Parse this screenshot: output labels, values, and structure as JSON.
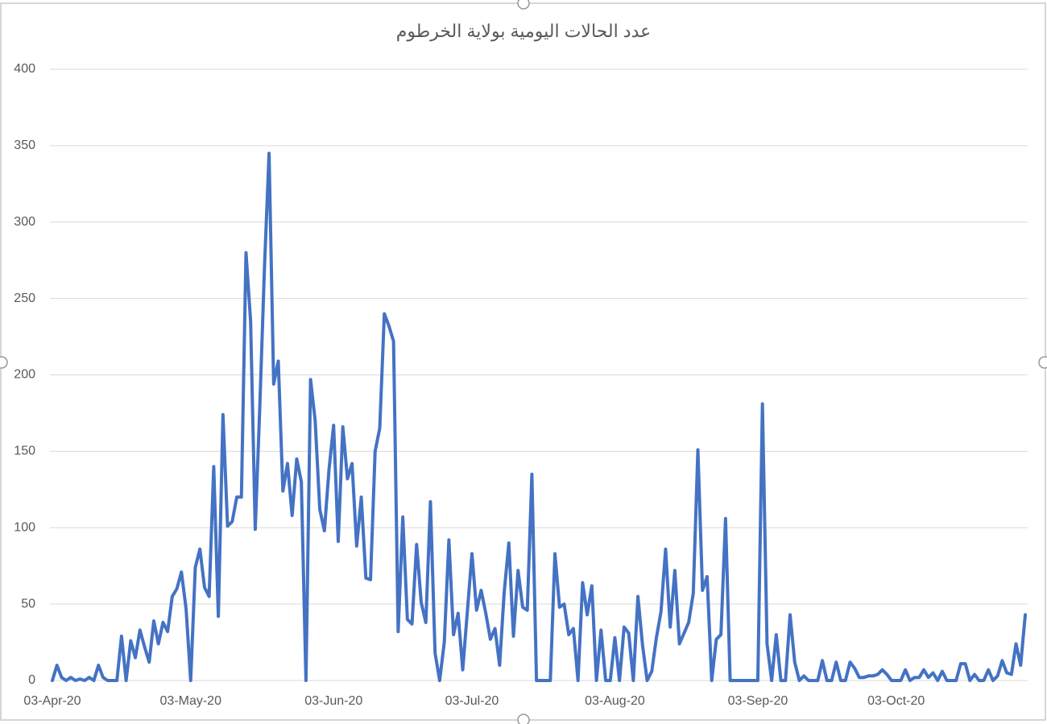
{
  "chart_data": {
    "type": "line",
    "title": "عدد الحالات اليومية بولاية الخرطوم",
    "categories": [
      "03-Apr-20",
      null,
      null,
      null,
      null,
      null,
      null,
      null,
      null,
      null,
      null,
      null,
      null,
      null,
      null,
      null,
      null,
      null,
      null,
      null,
      null,
      null,
      null,
      null,
      null,
      null,
      null,
      null,
      null,
      null,
      "03-May-20",
      null,
      null,
      null,
      null,
      null,
      null,
      null,
      null,
      null,
      null,
      null,
      null,
      null,
      null,
      null,
      null,
      null,
      null,
      null,
      null,
      null,
      null,
      null,
      null,
      null,
      null,
      null,
      null,
      null,
      null,
      "03-Jun-20",
      null,
      null,
      null,
      null,
      null,
      null,
      null,
      null,
      null,
      null,
      null,
      null,
      null,
      null,
      null,
      null,
      null,
      null,
      null,
      null,
      null,
      null,
      null,
      null,
      null,
      null,
      null,
      null,
      null,
      "03-Jul-20",
      null,
      null,
      null,
      null,
      null,
      null,
      null,
      null,
      null,
      null,
      null,
      null,
      null,
      null,
      null,
      null,
      null,
      null,
      null,
      null,
      null,
      null,
      null,
      null,
      null,
      null,
      null,
      null,
      null,
      null,
      "03-Aug-20",
      null,
      null,
      null,
      null,
      null,
      null,
      null,
      null,
      null,
      null,
      null,
      null,
      null,
      null,
      null,
      null,
      null,
      null,
      null,
      null,
      null,
      null,
      null,
      null,
      null,
      null,
      null,
      null,
      null,
      null,
      "03-Sep-20",
      null,
      null,
      null,
      null,
      null,
      null,
      null,
      null,
      null,
      null,
      null,
      null,
      null,
      null,
      null,
      null,
      null,
      null,
      null,
      null,
      null,
      null,
      null,
      null,
      null,
      null,
      null,
      null,
      null,
      "03-Oct-20",
      null,
      null,
      null,
      null,
      null,
      null,
      null,
      null,
      null,
      null,
      null,
      null,
      null,
      null,
      null,
      null,
      null,
      null,
      null,
      null,
      null,
      null,
      null,
      null,
      null,
      null,
      null,
      null
    ],
    "values": [
      0,
      10,
      2,
      0,
      2,
      0,
      1,
      0,
      2,
      0,
      10,
      2,
      0,
      0,
      0,
      29,
      0,
      26,
      15,
      33,
      22,
      12,
      39,
      24,
      38,
      32,
      55,
      60,
      71,
      47,
      0,
      74,
      86,
      61,
      55,
      140,
      42,
      174,
      101,
      104,
      120,
      120,
      280,
      235,
      99,
      180,
      270,
      345,
      194,
      209,
      124,
      142,
      108,
      145,
      130,
      0,
      197,
      170,
      112,
      98,
      138,
      167,
      91,
      166,
      132,
      142,
      88,
      120,
      67,
      66,
      150,
      165,
      240,
      232,
      222,
      32,
      107,
      40,
      37,
      89,
      51,
      38,
      117,
      18,
      0,
      25,
      92,
      30,
      44,
      7,
      45,
      83,
      46,
      59,
      44,
      27,
      34,
      10,
      58,
      90,
      29,
      72,
      48,
      46,
      135,
      0,
      0,
      0,
      0,
      83,
      48,
      50,
      30,
      34,
      0,
      64,
      43,
      62,
      0,
      33,
      0,
      0,
      28,
      0,
      35,
      31,
      0,
      55,
      23,
      0,
      6,
      28,
      45,
      86,
      35,
      72,
      24,
      31,
      38,
      57,
      151,
      59,
      68,
      0,
      27,
      30,
      106,
      0,
      0,
      0,
      0,
      0,
      0,
      0,
      181,
      24,
      0,
      30,
      0,
      0,
      43,
      12,
      0,
      3,
      0,
      0,
      0,
      13,
      0,
      0,
      12,
      0,
      0,
      12,
      8,
      2,
      2,
      3,
      3,
      4,
      7,
      4,
      0,
      0,
      0,
      7,
      0,
      2,
      2,
      7,
      2,
      5,
      0,
      6,
      0,
      0,
      0,
      11,
      11,
      0,
      4,
      0,
      0,
      7,
      0,
      3,
      13,
      5,
      4,
      24,
      10,
      43
    ],
    "color": "#4472c4",
    "ylim": [
      0,
      400
    ],
    "yticks": [
      0,
      50,
      100,
      150,
      200,
      250,
      300,
      350,
      400
    ],
    "grid": true
  }
}
